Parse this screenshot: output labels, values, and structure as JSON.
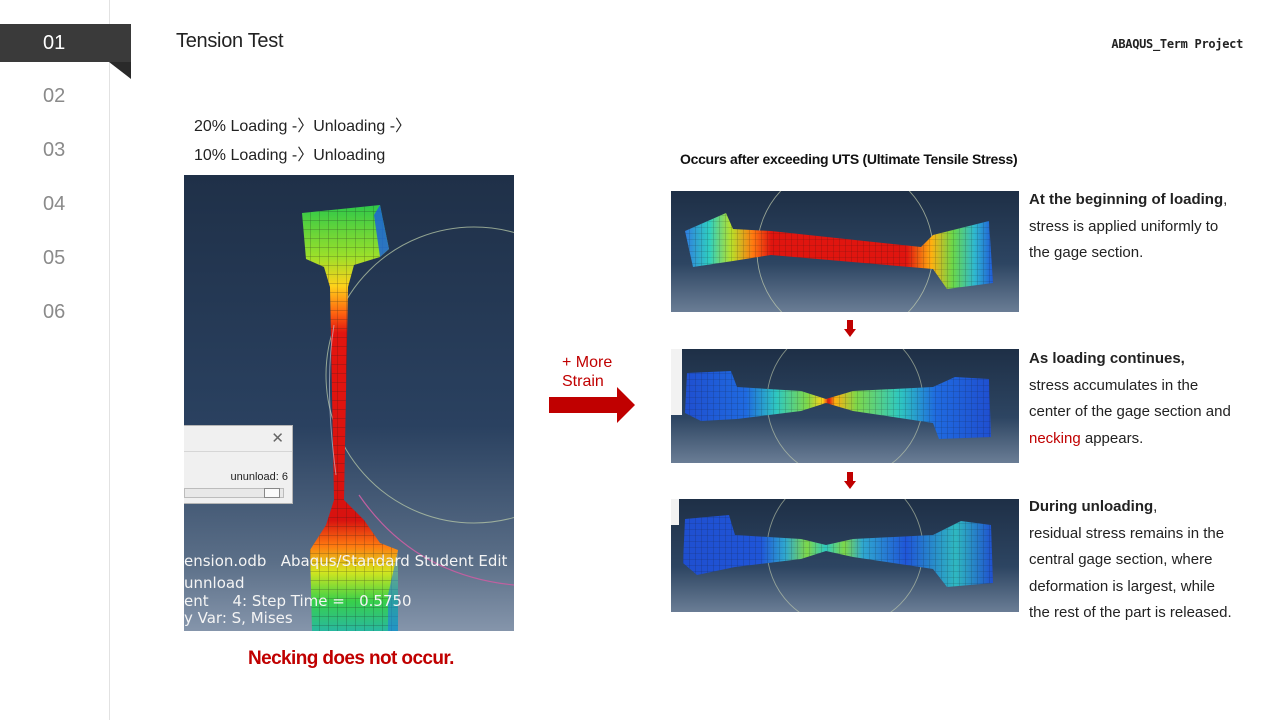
{
  "nav": {
    "items": [
      {
        "label": "01",
        "active": true
      },
      {
        "label": "02",
        "active": false
      },
      {
        "label": "03",
        "active": false
      },
      {
        "label": "04",
        "active": false
      },
      {
        "label": "05",
        "active": false
      },
      {
        "label": "06",
        "active": false
      }
    ]
  },
  "header": {
    "title": "Tension Test",
    "project_tag": "ABAQUS_Term Project"
  },
  "left": {
    "sequence_line1": "20% Loading -〉Unloading -〉",
    "sequence_line2": "10% Loading -〉Unloading",
    "viewport": {
      "popup_frame_label": "ununload: 6",
      "popup_close_icon": "close-icon",
      "text_lines": [
        "ension.odb   Abaqus/Standard Student Edit",
        "unnload",
        "ent     4: Step Time =   0.5750",
        "y Var: S, Mises"
      ]
    },
    "caption": "Necking does not occur."
  },
  "arrow": {
    "label_line1": "+ More",
    "label_line2": "Strain",
    "color": "#c00000"
  },
  "right": {
    "header": "Occurs after exceeding UTS (Ultimate Tensile Stress)",
    "steps": [
      {
        "lead": "At the beginning of loading",
        "lead_suffix": ",",
        "lines": [
          "stress is applied uniformly to",
          "the gage section."
        ]
      },
      {
        "lead": "As loading continues,",
        "lines": [
          "stress accumulates in the",
          "center of the gage section and"
        ],
        "highlight": "necking",
        "highlight_suffix": " appears."
      },
      {
        "lead": "During unloading",
        "lead_suffix": ",",
        "lines": [
          "residual stress remains in the",
          "central gage section, where",
          "deformation is largest, while",
          "the rest of the part is released."
        ]
      }
    ]
  },
  "colors": {
    "accent_red": "#c00000",
    "nav_active_bg": "#3a3a3a",
    "nav_text": "#8a8a8a"
  }
}
